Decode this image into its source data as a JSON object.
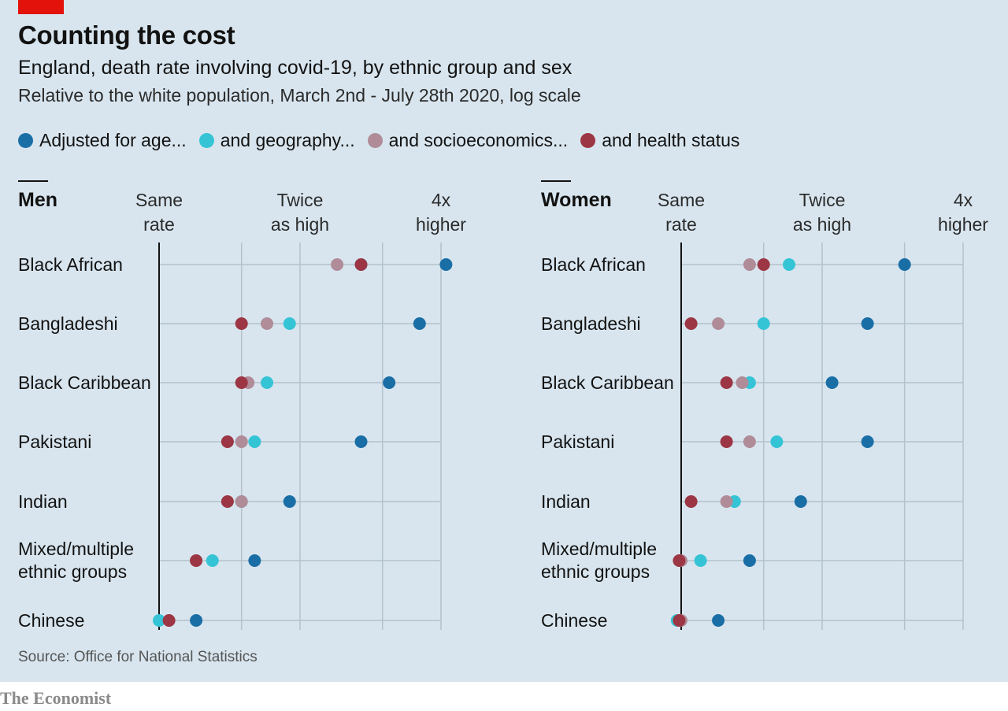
{
  "header": {
    "title": "Counting the cost",
    "subtitle": "England, death rate involving covid-19, by ethnic group and sex",
    "subtitle2": "Relative to the white population, March 2nd - July 28th 2020, log scale",
    "accent_color": "#e3120b"
  },
  "legend": [
    {
      "label": "Adjusted for age...",
      "color": "#1a6ea6"
    },
    {
      "label": "and geography...",
      "color": "#35c4d6"
    },
    {
      "label": "and socioeconomics...",
      "color": "#b08c98"
    },
    {
      "label": "and health status",
      "color": "#9c3644"
    }
  ],
  "source": "Source: Office for National Statistics",
  "brand": "The Economist",
  "chart_data": [
    {
      "type": "scatter",
      "title": "Men",
      "scale": "log",
      "xlim": [
        1,
        4.2
      ],
      "ticks": [
        {
          "value": 1,
          "label": [
            "Same",
            "rate"
          ]
        },
        {
          "value": 2,
          "label": [
            "Twice",
            "as high"
          ]
        },
        {
          "value": 4,
          "label": [
            "4x",
            "higher"
          ]
        }
      ],
      "categories": [
        "Black African",
        "Bangladeshi",
        "Black Caribbean",
        "Pakistani",
        "Indian",
        "Mixed/multiple ethnic groups",
        "Chinese"
      ],
      "category_labels": [
        [
          "Black African"
        ],
        [
          "Bangladeshi"
        ],
        [
          "Black Caribbean"
        ],
        [
          "Pakistani"
        ],
        [
          "Indian"
        ],
        [
          "Mixed/multiple",
          "ethnic groups"
        ],
        [
          "Chinese"
        ]
      ],
      "series": [
        {
          "name": "Adjusted for age...",
          "values": [
            4.1,
            3.6,
            3.1,
            2.7,
            1.9,
            1.6,
            1.2
          ]
        },
        {
          "name": "and geography...",
          "values": [
            2.7,
            1.9,
            1.7,
            1.6,
            1.5,
            1.3,
            1.0
          ]
        },
        {
          "name": "and socioeconomics...",
          "values": [
            2.4,
            1.7,
            1.55,
            1.5,
            1.5,
            1.2,
            1.05
          ]
        },
        {
          "name": "and health status",
          "values": [
            2.7,
            1.5,
            1.5,
            1.4,
            1.4,
            1.2,
            1.05
          ]
        }
      ]
    },
    {
      "type": "scatter",
      "title": "Women",
      "scale": "log",
      "xlim": [
        1,
        4.2
      ],
      "ticks": [
        {
          "value": 1,
          "label": [
            "Same",
            "rate"
          ]
        },
        {
          "value": 2,
          "label": [
            "Twice",
            "as high"
          ]
        },
        {
          "value": 4,
          "label": [
            "4x",
            "higher"
          ]
        }
      ],
      "categories": [
        "Black African",
        "Bangladeshi",
        "Black Caribbean",
        "Pakistani",
        "Indian",
        "Mixed/multiple ethnic groups",
        "Chinese"
      ],
      "category_labels": [
        [
          "Black African"
        ],
        [
          "Bangladeshi"
        ],
        [
          "Black Caribbean"
        ],
        [
          "Pakistani"
        ],
        [
          "Indian"
        ],
        [
          "Mixed/multiple",
          "ethnic groups"
        ],
        [
          "Chinese"
        ]
      ],
      "series": [
        {
          "name": "Adjusted for age...",
          "values": [
            3.0,
            2.5,
            2.1,
            2.5,
            1.8,
            1.4,
            1.2
          ]
        },
        {
          "name": "and geography...",
          "values": [
            1.7,
            1.5,
            1.4,
            1.6,
            1.3,
            1.1,
            0.98
          ]
        },
        {
          "name": "and socioeconomics...",
          "values": [
            1.4,
            1.2,
            1.35,
            1.4,
            1.25,
            1.0,
            1.0
          ]
        },
        {
          "name": "and health status",
          "values": [
            1.5,
            1.05,
            1.25,
            1.25,
            1.05,
            0.99,
            0.99
          ]
        }
      ]
    }
  ]
}
